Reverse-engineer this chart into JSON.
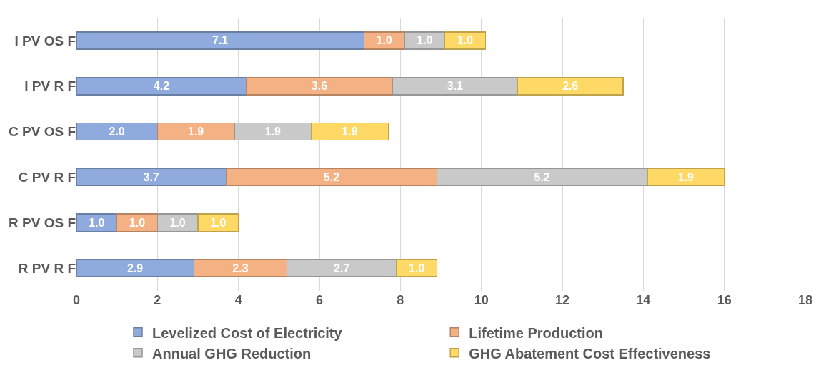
{
  "chart_data": {
    "type": "bar",
    "orientation": "horizontal",
    "stacked": true,
    "categories": [
      "I PV OS F",
      "I PV R F",
      "C PV OS F",
      "C PV R F",
      "R PV OS F",
      "R PV R F"
    ],
    "series": [
      {
        "name": "Levelized Cost of Electricity",
        "color": "#8faadc",
        "values": [
          7.1,
          4.2,
          2.0,
          3.7,
          1.0,
          2.9
        ],
        "value_labels": [
          "7.1",
          "4.2",
          "2.0",
          "3.7",
          "1.0",
          "2.9"
        ]
      },
      {
        "name": "Lifetime Production",
        "color": "#f4b183",
        "values": [
          1.0,
          3.6,
          1.9,
          5.2,
          1.0,
          2.3
        ],
        "value_labels": [
          "1.0",
          "3.6",
          "1.9",
          "5.2",
          "1.0",
          "2.3"
        ]
      },
      {
        "name": "Annual GHG Reduction",
        "color": "#c9c9c9",
        "values": [
          1.0,
          3.1,
          1.9,
          5.2,
          1.0,
          2.7
        ],
        "value_labels": [
          "1.0",
          "3.1",
          "1.9",
          "5.2",
          "1.0",
          "2.7"
        ]
      },
      {
        "name": "GHG Abatement Cost Effectiveness",
        "color": "#ffd966",
        "values": [
          1.0,
          2.6,
          1.9,
          1.9,
          1.0,
          1.0
        ],
        "value_labels": [
          "1.0",
          "2.6",
          "1.9",
          "1.9",
          "1.0",
          "1.0"
        ]
      }
    ],
    "xlim": [
      0,
      18
    ],
    "xticks": [
      0,
      2,
      4,
      6,
      8,
      10,
      12,
      14,
      16,
      18
    ],
    "grid": "x",
    "legend": "bottom"
  }
}
